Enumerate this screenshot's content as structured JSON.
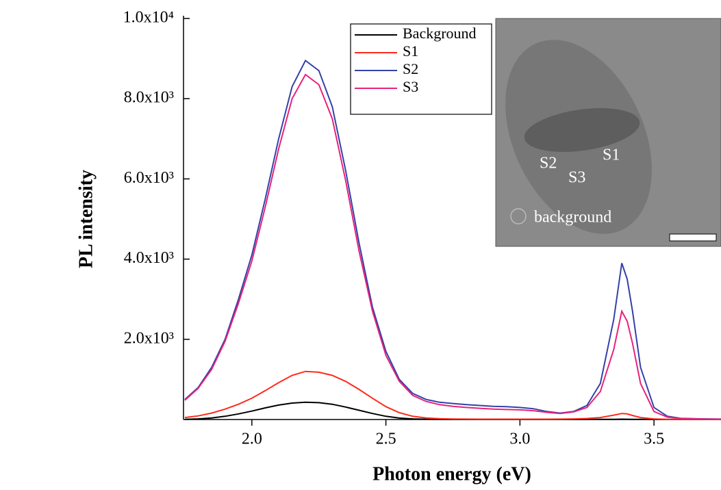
{
  "chart_data": {
    "type": "line",
    "x_label": "Photon energy (eV)",
    "y_label": "PL intensity",
    "xlim": [
      1.745,
      3.75
    ],
    "ylim": [
      0,
      10000
    ],
    "xticks": [
      {
        "value": 2.0,
        "label": "2.0"
      },
      2.5,
      {
        "value": 3.0,
        "label": "3.0"
      },
      3.5
    ],
    "yticks": [
      {
        "value": 2000,
        "label": "2.0x10³"
      },
      {
        "value": 4000,
        "label": "4.0x10³"
      },
      {
        "value": 6000,
        "label": "6.0x10³"
      },
      {
        "value": 8000,
        "label": "8.0x10³"
      },
      {
        "value": 10000,
        "label": "1.0x10⁴"
      }
    ],
    "legend": "upper right",
    "x": [
      1.75,
      1.8,
      1.85,
      1.9,
      1.95,
      2.0,
      2.05,
      2.1,
      2.15,
      2.2,
      2.25,
      2.3,
      2.35,
      2.4,
      2.45,
      2.5,
      2.55,
      2.6,
      2.65,
      2.7,
      2.75,
      2.8,
      2.85,
      2.9,
      2.95,
      3.0,
      3.05,
      3.1,
      3.15,
      3.2,
      3.25,
      3.3,
      3.35,
      3.38,
      3.4,
      3.42,
      3.45,
      3.5,
      3.55,
      3.6,
      3.65,
      3.7,
      3.75
    ],
    "series": [
      {
        "name": "Background",
        "color": "#000000",
        "values": [
          5,
          15,
          40,
          80,
          140,
          210,
          290,
          360,
          410,
          430,
          420,
          380,
          310,
          230,
          150,
          80,
          35,
          15,
          6,
          3,
          2,
          2,
          2,
          2,
          2,
          2,
          2,
          2,
          2,
          2,
          2,
          3,
          5,
          8,
          7,
          5,
          3,
          1,
          1,
          1,
          1,
          1,
          1
        ]
      },
      {
        "name": "S1",
        "color": "#ff2a1a",
        "values": [
          50,
          90,
          160,
          260,
          380,
          530,
          720,
          920,
          1100,
          1200,
          1180,
          1100,
          950,
          750,
          530,
          320,
          170,
          80,
          40,
          20,
          12,
          10,
          8,
          8,
          8,
          8,
          8,
          8,
          10,
          15,
          25,
          50,
          110,
          150,
          140,
          100,
          50,
          15,
          5,
          3,
          2,
          2,
          2
        ]
      },
      {
        "name": "S2",
        "color": "#3340a8",
        "values": [
          500,
          800,
          1300,
          2000,
          3000,
          4100,
          5500,
          7000,
          8300,
          8950,
          8700,
          7800,
          6200,
          4400,
          2800,
          1700,
          1000,
          650,
          500,
          430,
          400,
          370,
          350,
          330,
          320,
          300,
          270,
          200,
          160,
          200,
          350,
          900,
          2500,
          3900,
          3500,
          2700,
          1300,
          300,
          80,
          30,
          20,
          15,
          10
        ]
      },
      {
        "name": "S3",
        "color": "#e8217a",
        "values": [
          480,
          780,
          1250,
          1950,
          2900,
          3950,
          5300,
          6750,
          8000,
          8600,
          8350,
          7500,
          5950,
          4200,
          2700,
          1600,
          950,
          600,
          450,
          370,
          330,
          300,
          280,
          260,
          250,
          240,
          220,
          180,
          150,
          190,
          300,
          700,
          1750,
          2700,
          2450,
          1900,
          900,
          200,
          60,
          25,
          15,
          10,
          8
        ]
      }
    ],
    "inset": {
      "labels": [
        "S1",
        "S2",
        "S3",
        "background"
      ]
    }
  }
}
